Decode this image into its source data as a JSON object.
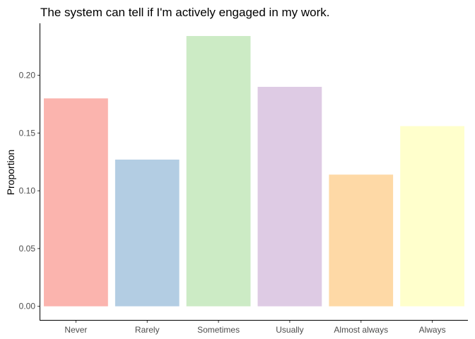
{
  "chart_data": {
    "type": "bar",
    "title": "The system can tell if I'm actively engaged in my work.",
    "xlabel": "",
    "ylabel": "Proportion",
    "categories": [
      "Never",
      "Rarely",
      "Sometimes",
      "Usually",
      "Almost always",
      "Always"
    ],
    "values": [
      0.18,
      0.127,
      0.234,
      0.19,
      0.114,
      0.156
    ],
    "colors": [
      "#FBB4AE",
      "#B3CDE3",
      "#CCEBC5",
      "#DECBE4",
      "#FED9A6",
      "#FFFFCC"
    ],
    "yticks": [
      0.0,
      0.05,
      0.1,
      0.15,
      0.2
    ],
    "ytick_labels": [
      "0.00",
      "0.05",
      "0.10",
      "0.15",
      "0.20"
    ],
    "ylim": [
      0,
      0.245
    ],
    "grid": false,
    "legend": "none"
  }
}
